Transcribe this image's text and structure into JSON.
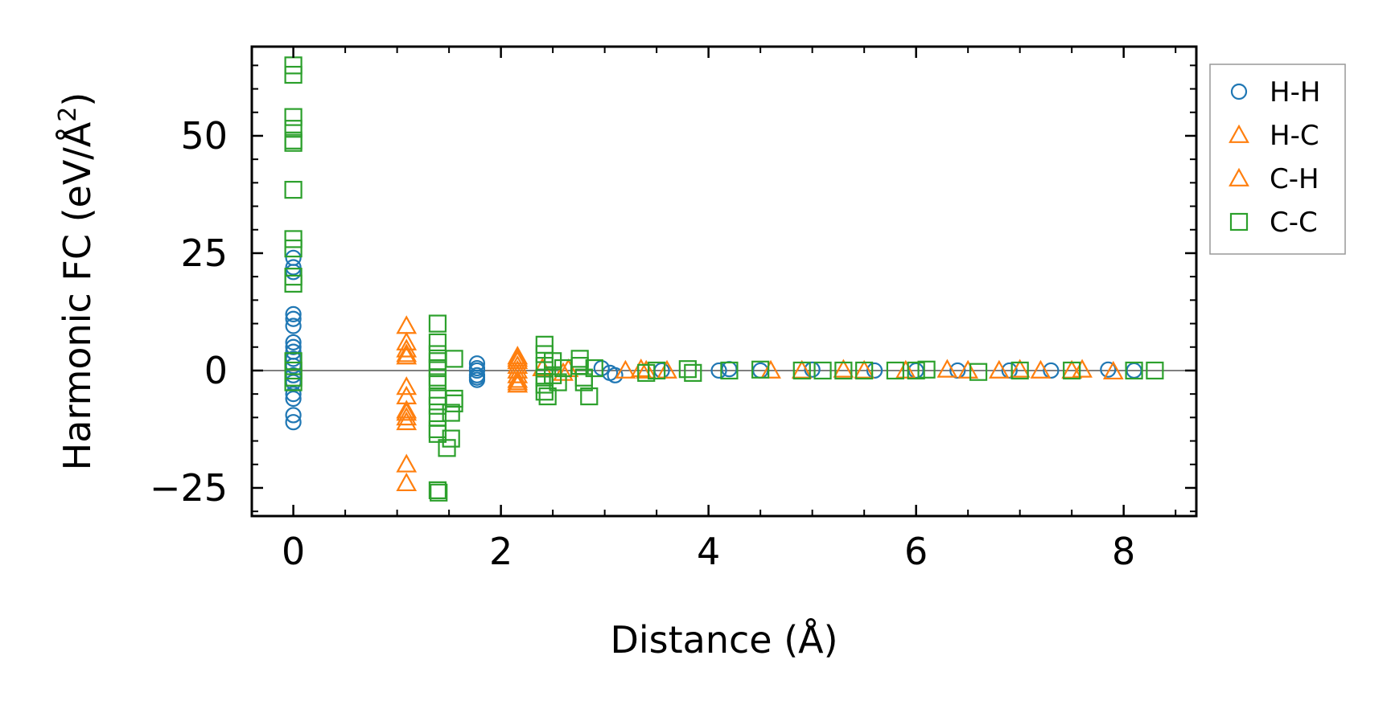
{
  "chart_data": {
    "type": "scatter",
    "title": "",
    "xlabel": "Distance (Å)",
    "ylabel": "Harmonic FC (eV/Å",
    "ylabel_sup": "2",
    "ylabel_close": ")",
    "xlim": [
      -0.4,
      8.7
    ],
    "ylim": [
      -31,
      69
    ],
    "xticks": [
      0,
      2,
      4,
      6,
      8
    ],
    "xtick_labels": [
      "0",
      "2",
      "4",
      "6",
      "8"
    ],
    "yticks": [
      -25,
      0,
      25,
      50
    ],
    "ytick_labels": [
      "−25",
      "0",
      "25",
      "50"
    ],
    "zero_line": 0,
    "legend_position": "outside-right-top",
    "series": [
      {
        "name": "H-H",
        "marker": "circle",
        "color": "#1f77b4",
        "points": [
          [
            0,
            -11
          ],
          [
            0,
            -9.5
          ],
          [
            0,
            -6
          ],
          [
            0,
            -5
          ],
          [
            0,
            -2.5
          ],
          [
            0,
            -1
          ],
          [
            0,
            1
          ],
          [
            0,
            2.5
          ],
          [
            0,
            4
          ],
          [
            0,
            5
          ],
          [
            0,
            6
          ],
          [
            0,
            9.5
          ],
          [
            0,
            11
          ],
          [
            0,
            12
          ],
          [
            0,
            21
          ],
          [
            0,
            22
          ],
          [
            0,
            24
          ],
          [
            1.77,
            -2
          ],
          [
            1.77,
            -1.5
          ],
          [
            1.77,
            -1
          ],
          [
            1.77,
            0
          ],
          [
            1.77,
            0.5
          ],
          [
            1.77,
            1.5
          ],
          [
            2.97,
            0.5
          ],
          [
            3.05,
            -0.5
          ],
          [
            3.1,
            -1
          ],
          [
            3.55,
            0
          ],
          [
            4.1,
            0
          ],
          [
            4.2,
            0.3
          ],
          [
            4.5,
            0
          ],
          [
            5.0,
            0.2
          ],
          [
            5.6,
            0
          ],
          [
            6.0,
            0
          ],
          [
            6.4,
            0
          ],
          [
            6.9,
            0
          ],
          [
            7.3,
            0
          ],
          [
            7.85,
            0.2
          ],
          [
            8.1,
            0
          ]
        ]
      },
      {
        "name": "H-C",
        "marker": "triangle",
        "color": "#ff7f0e",
        "points": [
          [
            1.09,
            -24
          ],
          [
            1.09,
            -20
          ],
          [
            1.09,
            -11
          ],
          [
            1.09,
            -10
          ],
          [
            1.09,
            -8.5
          ],
          [
            1.09,
            -5.5
          ],
          [
            1.09,
            -3.5
          ],
          [
            1.09,
            3
          ],
          [
            1.09,
            4.5
          ],
          [
            1.09,
            6
          ],
          [
            1.09,
            9.5
          ],
          [
            2.16,
            -3
          ],
          [
            2.16,
            -2
          ],
          [
            2.16,
            -1
          ],
          [
            2.16,
            0
          ],
          [
            2.16,
            1
          ],
          [
            2.16,
            2
          ],
          [
            2.16,
            3
          ],
          [
            2.4,
            0.5
          ],
          [
            2.6,
            -0.5
          ],
          [
            2.65,
            0.3
          ],
          [
            3.2,
            0
          ],
          [
            3.35,
            0.3
          ],
          [
            3.6,
            0
          ],
          [
            4.6,
            0
          ],
          [
            5.3,
            0.2
          ],
          [
            5.9,
            0
          ],
          [
            6.3,
            0.2
          ],
          [
            6.8,
            0
          ],
          [
            7.2,
            0
          ],
          [
            7.6,
            0.2
          ],
          [
            7.9,
            -0.2
          ]
        ]
      },
      {
        "name": "C-H",
        "marker": "triangle",
        "color": "#ff7f0e",
        "points": [
          [
            1.09,
            -9
          ],
          [
            1.09,
            3.5
          ],
          [
            2.16,
            -2.5
          ],
          [
            2.16,
            2.5
          ],
          [
            3.4,
            0
          ],
          [
            4.9,
            0
          ],
          [
            5.5,
            0
          ],
          [
            6.5,
            0
          ],
          [
            7.0,
            0.2
          ],
          [
            7.5,
            0
          ]
        ]
      },
      {
        "name": "C-C",
        "marker": "square",
        "color": "#2ca02c",
        "points": [
          [
            0,
            65
          ],
          [
            0,
            63
          ],
          [
            0,
            54
          ],
          [
            0,
            51.5
          ],
          [
            0,
            49
          ],
          [
            0,
            48.5
          ],
          [
            0,
            38.5
          ],
          [
            0,
            28
          ],
          [
            0,
            26
          ],
          [
            0,
            20
          ],
          [
            0,
            18.5
          ],
          [
            0,
            2
          ],
          [
            0,
            0
          ],
          [
            0,
            -1.5
          ],
          [
            0,
            -2.5
          ],
          [
            1.39,
            10
          ],
          [
            1.39,
            6
          ],
          [
            1.39,
            3.5
          ],
          [
            1.39,
            2
          ],
          [
            1.39,
            0.5
          ],
          [
            1.39,
            -1.5
          ],
          [
            1.39,
            -2.5
          ],
          [
            1.39,
            -5.5
          ],
          [
            1.39,
            -7.5
          ],
          [
            1.39,
            -10
          ],
          [
            1.39,
            -12.5
          ],
          [
            1.39,
            -13.5
          ],
          [
            1.39,
            -25.5
          ],
          [
            1.4,
            -26
          ],
          [
            1.48,
            -16.5
          ],
          [
            1.52,
            -14.5
          ],
          [
            1.52,
            -9
          ],
          [
            1.55,
            -7
          ],
          [
            1.55,
            -6
          ],
          [
            1.55,
            2.5
          ],
          [
            2.42,
            5.5
          ],
          [
            2.42,
            3.5
          ],
          [
            2.42,
            1
          ],
          [
            2.42,
            -1.5
          ],
          [
            2.42,
            -3
          ],
          [
            2.42,
            -4.5
          ],
          [
            2.45,
            -5.5
          ],
          [
            2.5,
            2
          ],
          [
            2.5,
            -1
          ],
          [
            2.55,
            -2.5
          ],
          [
            2.6,
            0.5
          ],
          [
            2.76,
            2.5
          ],
          [
            2.76,
            1
          ],
          [
            2.8,
            -1.5
          ],
          [
            2.8,
            -2.5
          ],
          [
            2.85,
            -5.5
          ],
          [
            2.9,
            0.5
          ],
          [
            3.4,
            -0.5
          ],
          [
            3.5,
            0
          ],
          [
            3.8,
            0.3
          ],
          [
            3.85,
            -0.5
          ],
          [
            4.2,
            0
          ],
          [
            4.5,
            0.2
          ],
          [
            4.9,
            0
          ],
          [
            5.1,
            0
          ],
          [
            5.3,
            0
          ],
          [
            5.5,
            0
          ],
          [
            5.8,
            0
          ],
          [
            6.0,
            0
          ],
          [
            6.1,
            0.2
          ],
          [
            6.6,
            -0.3
          ],
          [
            7.0,
            0
          ],
          [
            7.5,
            0
          ],
          [
            8.1,
            0
          ],
          [
            8.3,
            0
          ]
        ]
      }
    ]
  }
}
